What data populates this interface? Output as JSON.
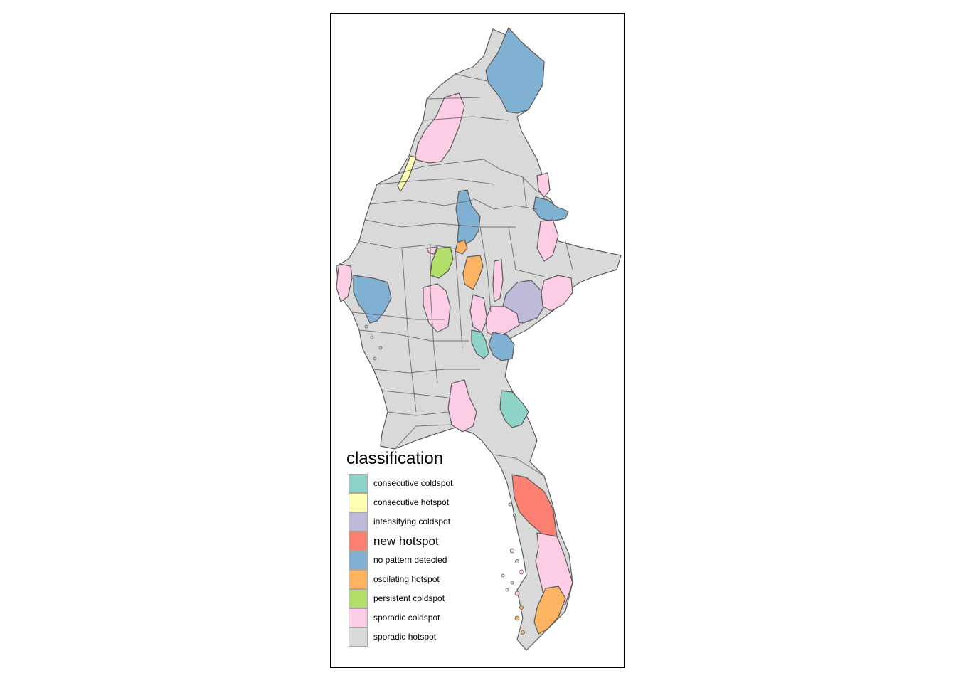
{
  "legend": {
    "title": "classification",
    "items": [
      {
        "label": "consecutive coldspot",
        "color": "#8DD3C7"
      },
      {
        "label": "consecutive hotspot",
        "color": "#FFFFB3"
      },
      {
        "label": "intensifying coldspot",
        "color": "#BEBADA"
      },
      {
        "label": "new hotspot",
        "color": "#FB8072"
      },
      {
        "label": "no pattern detected",
        "color": "#80B1D3"
      },
      {
        "label": "oscilating hotspot",
        "color": "#FDB462"
      },
      {
        "label": "persistent coldspot",
        "color": "#B3DE69"
      },
      {
        "label": "sporadic coldspot",
        "color": "#FCCDE5"
      },
      {
        "label": "sporadic hotspot",
        "color": "#D9D9D9"
      }
    ]
  },
  "map": {
    "border_color": "#5a5a5a",
    "default_fill": "#D9D9D9"
  }
}
